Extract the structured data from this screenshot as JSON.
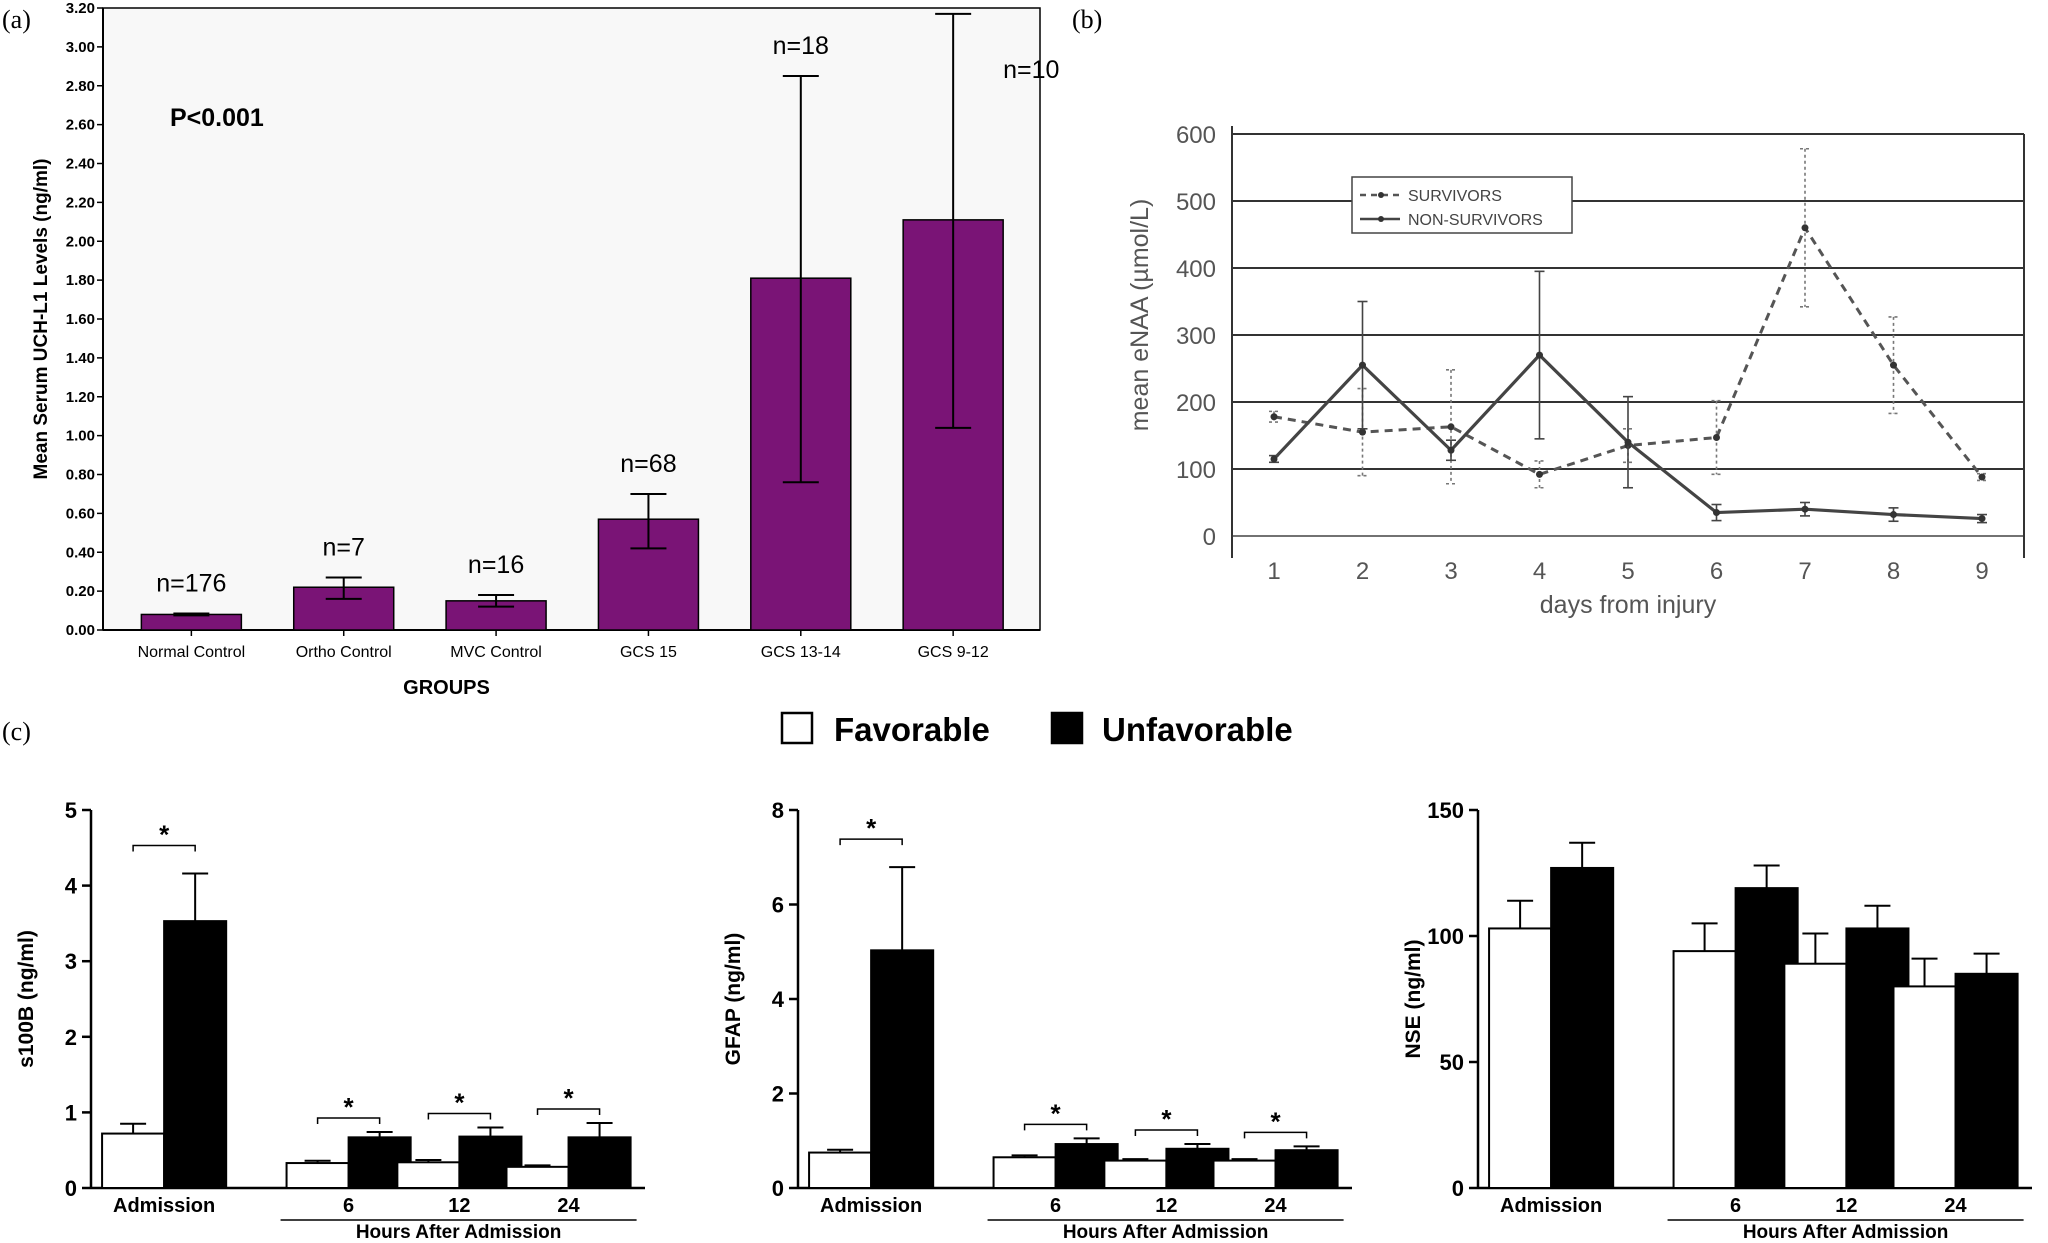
{
  "panel_labels": {
    "a": "(a)",
    "b": "(b)",
    "c": "(c)"
  },
  "colors": {
    "purple": "#7a1476",
    "plot_bg": "#f8f8f8",
    "grey_text": "#555555",
    "black": "#000000",
    "white": "#ffffff"
  },
  "chart_data": [
    {
      "id": "a",
      "type": "bar",
      "xlabel": "GROUPS",
      "ylabel": "Mean Serum UCH-L1 Levels (ng/ml)",
      "annotation": "P<0.001",
      "ylim": [
        0,
        3.2
      ],
      "ytick_labels": [
        "0.00",
        "0.20",
        "0.40",
        "0.60",
        "0.80",
        "1.00",
        "1.20",
        "1.40",
        "1.60",
        "1.80",
        "2.00",
        "2.20",
        "2.40",
        "2.60",
        "2.80",
        "3.00",
        "3.20"
      ],
      "categories": [
        "Normal Control",
        "Ortho Control",
        "MVC Control",
        "GCS 15",
        "GCS 13-14",
        "GCS 9-12"
      ],
      "values": [
        0.08,
        0.22,
        0.15,
        0.57,
        1.81,
        2.11
      ],
      "err_low": [
        0.075,
        0.16,
        0.12,
        0.42,
        0.76,
        1.04
      ],
      "err_high": [
        0.085,
        0.27,
        0.18,
        0.7,
        2.85,
        3.17
      ],
      "n_labels": [
        "n=176",
        "n=7",
        "n=16",
        "n=68",
        "n=18",
        "n=10"
      ]
    },
    {
      "id": "b",
      "type": "line",
      "xlabel": "days from injury",
      "ylabel": "mean eNAA (µmol/L)",
      "ylim": [
        0,
        600
      ],
      "x": [
        1,
        2,
        3,
        4,
        5,
        6,
        7,
        8,
        9
      ],
      "ytick_labels": [
        "0",
        "100",
        "200",
        "300",
        "400",
        "500",
        "600"
      ],
      "xtick_labels": [
        "1",
        "2",
        "3",
        "4",
        "5",
        "6",
        "7",
        "8",
        "9"
      ],
      "series": [
        {
          "name": "SURVIVORS",
          "style": "dashed",
          "values": [
            178,
            155,
            163,
            92,
            135,
            147,
            460,
            255,
            88
          ],
          "err": [
            8,
            65,
            85,
            20,
            25,
            55,
            118,
            72,
            5
          ]
        },
        {
          "name": "NON-SURVIVORS",
          "style": "solid",
          "values": [
            115,
            255,
            128,
            270,
            140,
            35,
            40,
            32,
            26
          ],
          "err": [
            5,
            95,
            15,
            125,
            68,
            12,
            10,
            10,
            6
          ]
        }
      ]
    },
    {
      "id": "c1",
      "type": "bar",
      "ylabel": "s100B (ng/ml)",
      "ylim": [
        0,
        5
      ],
      "ytick_labels": [
        "0",
        "1",
        "2",
        "3",
        "4",
        "5"
      ],
      "categories": [
        "Admission",
        "6",
        "12",
        "24"
      ],
      "series": [
        {
          "name": "Favorable",
          "values": [
            0.72,
            0.33,
            0.34,
            0.28
          ],
          "err": [
            0.13,
            0.03,
            0.03,
            0.02
          ]
        },
        {
          "name": "Unfavorable",
          "values": [
            3.53,
            0.67,
            0.68,
            0.67
          ],
          "err": [
            0.63,
            0.07,
            0.12,
            0.19
          ]
        }
      ],
      "significance": [
        "*",
        "*",
        "*",
        "*"
      ],
      "group_label": "Hours After Admission"
    },
    {
      "id": "c2",
      "type": "bar",
      "ylabel": "GFAP (ng/ml)",
      "ylim": [
        0,
        8
      ],
      "ytick_labels": [
        "0",
        "2",
        "4",
        "6",
        "8"
      ],
      "categories": [
        "Admission",
        "6",
        "12",
        "24"
      ],
      "series": [
        {
          "name": "Favorable",
          "values": [
            0.75,
            0.65,
            0.58,
            0.58
          ],
          "err": [
            0.06,
            0.04,
            0.03,
            0.03
          ]
        },
        {
          "name": "Unfavorable",
          "values": [
            5.03,
            0.93,
            0.83,
            0.8
          ],
          "err": [
            1.76,
            0.12,
            0.1,
            0.08
          ]
        }
      ],
      "significance": [
        "*",
        "*",
        "*",
        "*"
      ],
      "group_label": "Hours After Admission"
    },
    {
      "id": "c3",
      "type": "bar",
      "ylabel": "NSE (ng/ml)",
      "ylim": [
        0,
        150
      ],
      "ytick_labels": [
        "0",
        "50",
        "100",
        "150"
      ],
      "categories": [
        "Admission",
        "6",
        "12",
        "24"
      ],
      "series": [
        {
          "name": "Favorable",
          "values": [
            103,
            94,
            89,
            80
          ],
          "err": [
            11,
            11,
            12,
            11
          ]
        },
        {
          "name": "Unfavorable",
          "values": [
            127,
            119,
            103,
            85
          ],
          "err": [
            10,
            9,
            9,
            8
          ]
        }
      ],
      "significance": [],
      "group_label": "Hours After Admission"
    }
  ],
  "legend_c": {
    "favorable": "Favorable",
    "unfavorable": "Unfavorable"
  }
}
